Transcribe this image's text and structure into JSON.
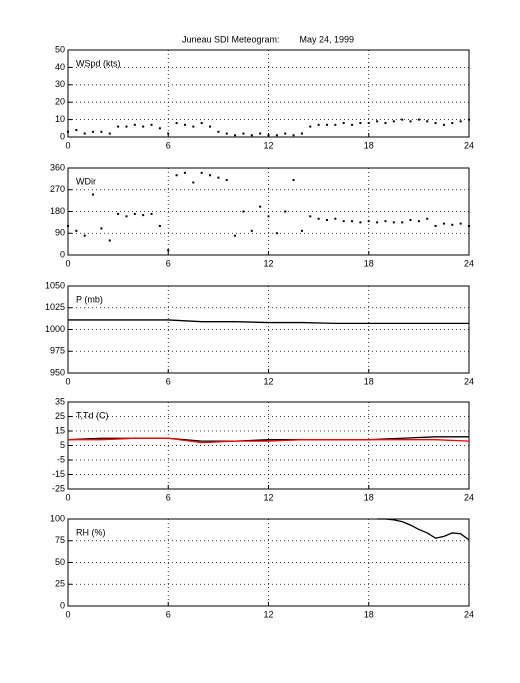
{
  "title": "Juneau SDI Meteogram:        May 24, 1999",
  "chart_data": [
    {
      "type": "scatter",
      "label": "WSpd (kts)",
      "xlim": [
        0,
        24
      ],
      "xticks": [
        0,
        6,
        12,
        18,
        24
      ],
      "ylim": [
        0,
        50
      ],
      "yticks": [
        0,
        10,
        20,
        30,
        40,
        50
      ],
      "grid": true,
      "x": [
        0,
        0.5,
        1,
        1.5,
        2,
        2.5,
        3,
        3.5,
        4,
        4.5,
        5,
        5.5,
        6,
        6.5,
        7,
        7.5,
        8,
        8.5,
        9,
        9.5,
        10,
        10.5,
        11,
        11.5,
        12,
        12.5,
        13,
        13.5,
        14,
        14.5,
        15,
        15.5,
        16,
        16.5,
        17,
        17.5,
        18,
        18.5,
        19,
        19.5,
        20,
        20.5,
        21,
        21.5,
        22,
        22.5,
        23,
        23.5,
        24
      ],
      "series": [
        {
          "color": "#000000",
          "values": [
            3,
            4,
            2,
            3,
            3,
            2,
            6,
            6,
            7,
            6,
            7,
            5,
            2,
            8,
            7,
            6,
            8,
            6,
            3,
            2,
            1,
            2,
            1,
            2,
            1,
            1,
            2,
            1,
            2,
            6,
            7,
            7,
            7,
            8,
            7,
            8,
            8,
            9,
            8,
            9,
            10,
            9,
            10,
            9,
            8,
            7,
            8,
            9,
            10
          ]
        }
      ]
    },
    {
      "type": "scatter",
      "label": "WDir",
      "xlim": [
        0,
        24
      ],
      "xticks": [
        0,
        6,
        12,
        18,
        24
      ],
      "ylim": [
        0,
        360
      ],
      "yticks": [
        0,
        90,
        180,
        270,
        360
      ],
      "grid": true,
      "x": [
        0,
        0.5,
        1,
        1.5,
        2,
        2.5,
        3,
        3.5,
        4,
        4.5,
        5,
        5.5,
        6,
        6.5,
        7,
        7.5,
        8,
        8.5,
        9,
        9.5,
        10,
        10.5,
        11,
        11.5,
        12,
        12.5,
        13,
        13.5,
        14,
        14.5,
        15,
        15.5,
        16,
        16.5,
        17,
        17.5,
        18,
        18.5,
        19,
        19.5,
        20,
        20.5,
        21,
        21.5,
        22,
        22.5,
        23,
        23.5,
        24
      ],
      "series": [
        {
          "color": "#000000",
          "values": [
            120,
            100,
            80,
            250,
            110,
            60,
            170,
            160,
            170,
            165,
            170,
            120,
            20,
            330,
            340,
            300,
            340,
            330,
            320,
            310,
            80,
            180,
            100,
            200,
            160,
            90,
            180,
            310,
            100,
            160,
            150,
            145,
            150,
            140,
            140,
            135,
            140,
            135,
            140,
            135,
            135,
            145,
            140,
            150,
            120,
            130,
            125,
            130,
            120
          ]
        }
      ]
    },
    {
      "type": "line",
      "label": "P (mb)",
      "xlim": [
        0,
        24
      ],
      "xticks": [
        0,
        6,
        12,
        18,
        24
      ],
      "ylim": [
        950,
        1050
      ],
      "yticks": [
        950,
        975,
        1000,
        1025,
        1050
      ],
      "grid": true,
      "x": [
        0,
        2,
        4,
        6,
        8,
        10,
        12,
        14,
        16,
        18,
        20,
        22,
        24
      ],
      "series": [
        {
          "color": "#000000",
          "values": [
            1011,
            1011,
            1011,
            1011,
            1009,
            1009,
            1008,
            1008,
            1007,
            1007,
            1007,
            1007,
            1007
          ]
        }
      ]
    },
    {
      "type": "line",
      "label": "T,Td (C)",
      "xlim": [
        0,
        24
      ],
      "xticks": [
        0,
        6,
        12,
        18,
        24
      ],
      "ylim": [
        -25,
        35
      ],
      "yticks": [
        -25,
        -15,
        -5,
        5,
        15,
        25,
        35
      ],
      "grid": true,
      "x": [
        0,
        2,
        4,
        6,
        8,
        10,
        12,
        14,
        16,
        18,
        20,
        22,
        24
      ],
      "series": [
        {
          "color": "#000000",
          "values": [
            9,
            10,
            10,
            10,
            8,
            8,
            9,
            9,
            9,
            9,
            10,
            11,
            11
          ]
        },
        {
          "color": "#ff0000",
          "values": [
            9,
            9,
            10,
            10,
            7,
            8,
            8,
            9,
            9,
            9,
            9,
            9,
            8
          ]
        }
      ]
    },
    {
      "type": "line",
      "label": "RH (%)",
      "xlim": [
        0,
        24
      ],
      "xticks": [
        0,
        6,
        12,
        18,
        24
      ],
      "ylim": [
        0,
        100
      ],
      "yticks": [
        0,
        25,
        50,
        75,
        100
      ],
      "grid": true,
      "x": [
        18.5,
        19,
        19.5,
        20,
        20.5,
        21,
        21.5,
        22,
        22.5,
        23,
        23.5,
        24
      ],
      "series": [
        {
          "color": "#000000",
          "values": [
            100,
            100,
            99,
            97,
            93,
            88,
            84,
            78,
            80,
            84,
            83,
            76
          ]
        }
      ]
    }
  ]
}
